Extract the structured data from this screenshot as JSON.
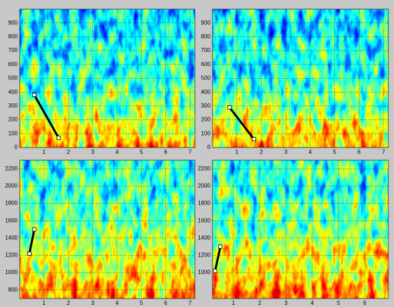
{
  "chart_data": [
    {
      "type": "spectrogram",
      "xlim": [
        0,
        7.2
      ],
      "ylim": [
        0,
        1000
      ],
      "xticks": [
        1,
        2,
        3,
        4,
        5,
        6,
        7
      ],
      "yticks": [
        0,
        100,
        200,
        300,
        400,
        500,
        600,
        700,
        800,
        900
      ],
      "track": {
        "x": [
          0.6,
          1.6
        ],
        "y": [
          380,
          70
        ],
        "color": "#000000"
      },
      "grid": true
    },
    {
      "type": "spectrogram",
      "xlim": [
        0,
        7.2
      ],
      "ylim": [
        0,
        1000
      ],
      "xticks": [
        1,
        2,
        3,
        4,
        5,
        6,
        7
      ],
      "yticks": [
        0,
        100,
        200,
        300,
        400,
        500,
        600,
        700,
        800,
        900
      ],
      "track": {
        "x": [
          0.7,
          1.7
        ],
        "y": [
          290,
          60
        ],
        "color": "#000000"
      },
      "grid": true
    },
    {
      "type": "spectrogram",
      "xlim": [
        0,
        7.2
      ],
      "ylim": [
        700,
        2300
      ],
      "xticks": [
        1,
        2,
        3,
        4,
        5,
        6,
        7
      ],
      "yticks": [
        800,
        1000,
        1200,
        1400,
        1600,
        1800,
        2000,
        2200
      ],
      "track": {
        "x": [
          0.4,
          0.6
        ],
        "y": [
          1220,
          1500
        ],
        "color": "#000000"
      },
      "grid": true
    },
    {
      "type": "spectrogram",
      "xlim": [
        0.2,
        6.9
      ],
      "ylim": [
        700,
        2300
      ],
      "xticks": [
        1,
        2,
        3,
        4,
        5,
        6
      ],
      "yticks": [
        1000,
        1200,
        1400,
        1600,
        1800,
        2000,
        2200
      ],
      "track": {
        "x": [
          0.3,
          0.5
        ],
        "y": [
          1020,
          1300
        ],
        "color": "#000000"
      },
      "grid": true
    }
  ]
}
